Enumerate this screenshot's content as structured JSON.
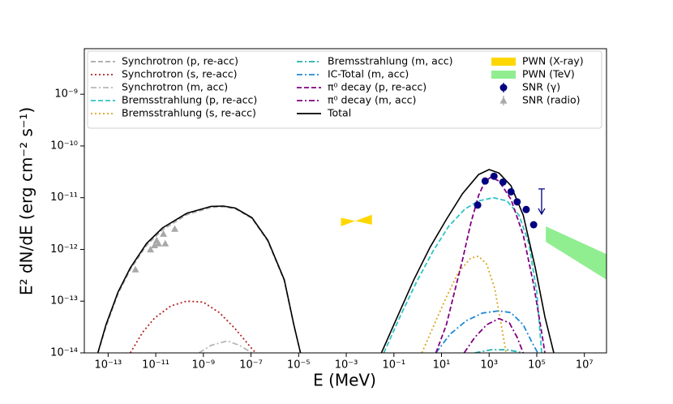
{
  "chart_data": {
    "type": "line",
    "xlabel": "E (MeV)",
    "ylabel": "E² dN/dE (erg cm⁻² s⁻¹)",
    "xscale": "log",
    "yscale": "log",
    "xlim": [
      1e-14,
      85000000.0
    ],
    "ylim": [
      1e-14,
      7.6e-09
    ],
    "xticks": [
      {
        "value": 1e-13,
        "label": "10⁻¹³"
      },
      {
        "value": 1e-11,
        "label": "10⁻¹¹"
      },
      {
        "value": 1e-09,
        "label": "10⁻⁹"
      },
      {
        "value": 1e-07,
        "label": "10⁻⁷"
      },
      {
        "value": 1e-05,
        "label": "10⁻⁵"
      },
      {
        "value": 0.001,
        "label": "10⁻³"
      },
      {
        "value": 0.1,
        "label": "10⁻¹"
      },
      {
        "value": 10,
        "label": "10¹"
      },
      {
        "value": 1000,
        "label": "10³"
      },
      {
        "value": 100000,
        "label": "10⁵"
      },
      {
        "value": 10000000,
        "label": "10⁷"
      }
    ],
    "yticks": [
      {
        "value": 1e-14,
        "label": "10⁻¹⁴"
      },
      {
        "value": 1e-13,
        "label": "10⁻¹³"
      },
      {
        "value": 1e-12,
        "label": "10⁻¹²"
      },
      {
        "value": 1e-11,
        "label": "10⁻¹¹"
      },
      {
        "value": 1e-10,
        "label": "10⁻¹⁰"
      },
      {
        "value": 1e-09,
        "label": "10⁻⁹"
      }
    ],
    "legend": "upper center",
    "series": [
      {
        "name": "Synchrotron (p, re-acc)",
        "kind": "line",
        "style": "dashed",
        "color": "#a8a8a8",
        "x": [
          3.7e-14,
          8.1e-14,
          2.6e-13,
          8.5e-13,
          4.1e-12,
          1.9e-11,
          2e-10,
          2.1e-09,
          6.9e-09,
          2.2e-08,
          1.1e-07,
          5.1e-07,
          2.5e-06,
          6.3e-06,
          1.2e-05
        ],
        "values": [
          1e-14,
          3.2e-14,
          1.4e-13,
          4.1e-13,
          1.2e-12,
          2.4e-12,
          4.7e-12,
          6.5e-12,
          6.7e-12,
          6.1e-12,
          4e-12,
          1.45e-12,
          2.5e-13,
          3.4e-14,
          1e-14
        ]
      },
      {
        "name": "Synchrotron (s, re-acc)",
        "kind": "line",
        "style": "dotted",
        "color": "#b22222",
        "x": [
          8.5e-13,
          2.8e-12,
          8.9e-12,
          4.3e-11,
          2e-10,
          9.8e-10,
          4.7e-09,
          2.2e-08,
          1.1e-07,
          1.6e-07
        ],
        "values": [
          1e-14,
          2.5e-14,
          4.7e-14,
          8.1e-14,
          1e-13,
          9.6e-14,
          6e-14,
          2.9e-14,
          1.2e-14,
          1e-14
        ]
      },
      {
        "name": "Synchrotron (m, acc)",
        "kind": "line",
        "style": "dashdot",
        "color": "#b8b8b8",
        "x": [
          6.6e-10,
          2.1e-09,
          1e-08,
          3.3e-08,
          1.1e-07
        ],
        "values": [
          1e-14,
          1.4e-14,
          1.7e-14,
          1.4e-14,
          1e-14
        ]
      },
      {
        "name": "Bremsstrahlung (p, re-acc)",
        "kind": "line",
        "style": "dashed",
        "color": "#2ec4c4",
        "x": [
          0.038,
          0.18,
          0.87,
          4.2,
          20,
          95,
          360,
          1500,
          5600,
          18000,
          47000,
          100000,
          160000
        ],
        "values": [
          1e-14,
          5e-14,
          2.3e-13,
          8.9e-13,
          2.8e-12,
          6e-12,
          8.7e-12,
          1e-11,
          8.7e-12,
          4.6e-12,
          1.3e-12,
          1.5e-13,
          1e-14
        ]
      },
      {
        "name": "Bremsstrahlung (s, re-acc)",
        "kind": "line",
        "style": "dotted",
        "color": "#daa520",
        "x": [
          1.5,
          4.9,
          16,
          51,
          170,
          360,
          790,
          1700,
          3200,
          5200
        ],
        "values": [
          1e-14,
          3.5e-14,
          1.2e-13,
          3.6e-13,
          6.8e-13,
          7.4e-13,
          5.2e-13,
          1.8e-13,
          3.5e-14,
          1e-14
        ]
      },
      {
        "name": "Bremsstrahlung (m, acc)",
        "kind": "line",
        "style": "dashdot",
        "color": "#20b2aa",
        "x": [
          250,
          1200,
          5600,
          27000
        ],
        "values": [
          1e-14,
          1.15e-14,
          1.15e-14,
          1e-14
        ]
      },
      {
        "name": "IC-Total (m, acc)",
        "kind": "line",
        "style": "dashdot",
        "color": "#1f8ad8",
        "x": [
          5.8,
          23,
          110,
          540,
          2600,
          8300,
          27000,
          59000,
          110000
        ],
        "values": [
          1e-14,
          2.3e-14,
          4.2e-14,
          5.9e-14,
          6.5e-14,
          6e-14,
          3.5e-14,
          1.7e-14,
          1e-14
        ]
      },
      {
        "name": "π⁰ decay (p, re-acc)",
        "kind": "line",
        "style": "dashed",
        "color": "#800080",
        "x": [
          5.8,
          16,
          35,
          76,
          170,
          360,
          680,
          1200,
          2600,
          8300,
          27000,
          74000,
          160000,
          220000
        ],
        "values": [
          1e-14,
          3.5e-14,
          1.5e-13,
          6.3e-13,
          3.2e-12,
          1.1e-11,
          2.1e-11,
          2.5e-11,
          2.1e-11,
          9.3e-12,
          1.9e-12,
          2.1e-13,
          2.5e-14,
          1e-14
        ]
      },
      {
        "name": "π⁰ decay (m, acc)",
        "kind": "line",
        "style": "dashdot",
        "color": "#800080",
        "x": [
          89,
          250,
          790,
          2600,
          7100,
          15000,
          27000
        ],
        "values": [
          1e-14,
          2e-14,
          3.5e-14,
          4.6e-14,
          3.8e-14,
          2e-14,
          1e-14
        ]
      },
      {
        "name": "Total",
        "kind": "line",
        "style": "solid",
        "color": "#000000",
        "x": [
          3.7e-14,
          8.1e-14,
          2.6e-13,
          8.5e-13,
          4.1e-12,
          1.9e-11,
          2e-10,
          2.1e-09,
          6.9e-09,
          2.2e-08,
          1.1e-07,
          5.1e-07,
          2.5e-06,
          6.3e-06,
          1.2e-05,
          null,
          0.03,
          0.14,
          0.69,
          3.3,
          16,
          76,
          360,
          1000,
          2600,
          8300,
          27000,
          87000,
          220000,
          520000
        ],
        "values": [
          1e-14,
          3.5e-14,
          1.5e-13,
          4.4e-13,
          1.3e-12,
          2.6e-12,
          5e-12,
          6.8e-12,
          6.9e-12,
          6.3e-12,
          4.1e-12,
          1.5e-12,
          2.6e-13,
          3.5e-14,
          1e-14,
          null,
          1e-14,
          5e-14,
          2.6e-13,
          1.1e-12,
          3.8e-12,
          1.2e-11,
          2.8e-11,
          3.5e-11,
          3e-11,
          1.7e-11,
          4.6e-12,
          4.4e-13,
          5e-14,
          1e-14
        ]
      },
      {
        "name": "PWN (X-ray)",
        "kind": "band",
        "shape": "bowtie",
        "color": "#ffd700",
        "x": [
          0.0006,
          0.012
        ],
        "upper": [
          4.1e-12,
          4.7e-12
        ],
        "lower": [
          2.8e-12,
          3e-12
        ]
      },
      {
        "name": "PWN (TeV)",
        "kind": "band",
        "shape": "trapezoid",
        "color": "#90ee90",
        "x": [
          240000.0,
          85000000.0
        ],
        "upper": [
          2.8e-12,
          8.1e-13
        ],
        "lower": [
          1.4e-12,
          2.6e-13
        ]
      },
      {
        "name": "SNR (γ)",
        "kind": "scatter",
        "marker": "o",
        "color": "#000080",
        "x": [
          330,
          680,
          1600,
          3800,
          8300,
          15000,
          36000,
          74000,
          160000
        ],
        "values": [
          7.2e-12,
          2.1e-11,
          2.6e-11,
          2e-11,
          1.3e-11,
          8.3e-12,
          5.9e-12,
          3e-12,
          5e-12
        ],
        "upper_limits": [
          false,
          false,
          false,
          false,
          false,
          false,
          false,
          false,
          true
        ]
      },
      {
        "name": "SNR (radio)",
        "kind": "scatter",
        "marker": "^",
        "color": "#a9a9a9",
        "x": [
          1.4e-12,
          6e-12,
          8.9e-12,
          1.1e-11,
          1.3e-11,
          2.1e-11,
          2.5e-11,
          6.3e-11
        ],
        "values": [
          4.1e-13,
          1e-12,
          1.2e-12,
          1.5e-12,
          1.3e-12,
          2e-12,
          1.3e-12,
          2.5e-12
        ]
      }
    ]
  }
}
